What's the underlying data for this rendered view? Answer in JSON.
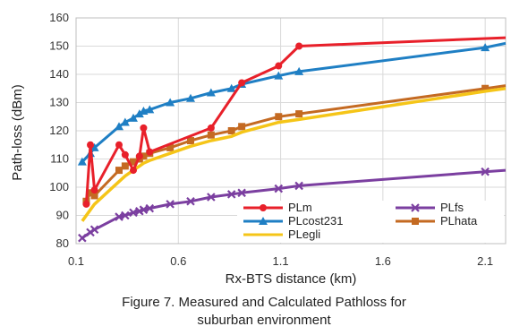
{
  "chart_data": {
    "type": "line",
    "xlabel": "Rx-BTS distance (km)",
    "ylabel": "Path-loss (dBm)",
    "xlim": [
      0.1,
      2.2
    ],
    "ylim": [
      80,
      160
    ],
    "xticks": [
      0.1,
      0.6,
      1.1,
      1.6,
      2.1
    ],
    "xtick_labels": [
      "0.1",
      "0.6",
      "1.1",
      "1.6",
      "2.1"
    ],
    "yticks": [
      80,
      90,
      100,
      110,
      120,
      130,
      140,
      150,
      160
    ],
    "ytick_labels": [
      "80",
      "90",
      "100",
      "110",
      "120",
      "130",
      "140",
      "150",
      "160"
    ],
    "grid": true,
    "legend_position": "bottom-right",
    "series": [
      {
        "name": "PLm",
        "color": "#e8202a",
        "marker": "circle",
        "x": [
          0.15,
          0.17,
          0.19,
          0.31,
          0.34,
          0.38,
          0.41,
          0.43,
          0.46,
          0.76,
          0.91,
          1.09,
          1.19,
          2.2
        ],
        "y": [
          94,
          115,
          99,
          115,
          111.5,
          106,
          111,
          121,
          112.5,
          121,
          137,
          143,
          150,
          153
        ]
      },
      {
        "name": "PLfs",
        "color": "#7b3fa0",
        "marker": "x",
        "x": [
          0.13,
          0.17,
          0.19,
          0.31,
          0.34,
          0.38,
          0.41,
          0.43,
          0.46,
          0.56,
          0.66,
          0.76,
          0.86,
          0.91,
          1.09,
          1.19,
          2.1,
          2.2
        ],
        "y": [
          82,
          84,
          85,
          89.5,
          90,
          91,
          91.5,
          92,
          92.5,
          94,
          95,
          96.5,
          97.5,
          98,
          99.5,
          100.5,
          105.5,
          106
        ]
      },
      {
        "name": "PLcost231",
        "color": "#1f7fc4",
        "marker": "triangle",
        "x": [
          0.13,
          0.17,
          0.19,
          0.31,
          0.34,
          0.38,
          0.41,
          0.43,
          0.46,
          0.56,
          0.66,
          0.76,
          0.86,
          0.91,
          1.09,
          1.19,
          2.1,
          2.2
        ],
        "y": [
          109,
          112,
          114,
          121.5,
          123,
          124.5,
          126,
          127,
          127.5,
          130,
          131.5,
          133.5,
          135,
          136.5,
          139.5,
          141,
          149.5,
          151
        ]
      },
      {
        "name": "PLhata",
        "color": "#c46a22",
        "marker": "square",
        "x": [
          0.15,
          0.17,
          0.19,
          0.31,
          0.34,
          0.38,
          0.41,
          0.43,
          0.46,
          0.56,
          0.66,
          0.76,
          0.86,
          0.91,
          1.09,
          1.19,
          2.1,
          2.2
        ],
        "y": [
          95,
          98,
          97,
          106,
          107.5,
          109,
          110,
          111,
          112,
          114,
          116.5,
          118.5,
          120,
          121.5,
          125,
          126,
          135,
          136
        ]
      },
      {
        "name": "PLegli",
        "color": "#f5c518",
        "marker": "none",
        "x": [
          0.13,
          0.17,
          0.19,
          0.31,
          0.34,
          0.38,
          0.41,
          0.43,
          0.46,
          0.56,
          0.66,
          0.76,
          0.86,
          0.91,
          1.09,
          1.19,
          2.1,
          2.2
        ],
        "y": [
          88,
          92,
          94,
          102,
          104,
          106,
          107.5,
          108.5,
          109.5,
          112,
          114.5,
          116.5,
          118,
          119.5,
          123,
          124,
          134,
          135
        ]
      }
    ]
  },
  "caption": {
    "line1": "Figure 7.  Measured and Calculated Pathloss for",
    "line2": "suburban environment"
  }
}
